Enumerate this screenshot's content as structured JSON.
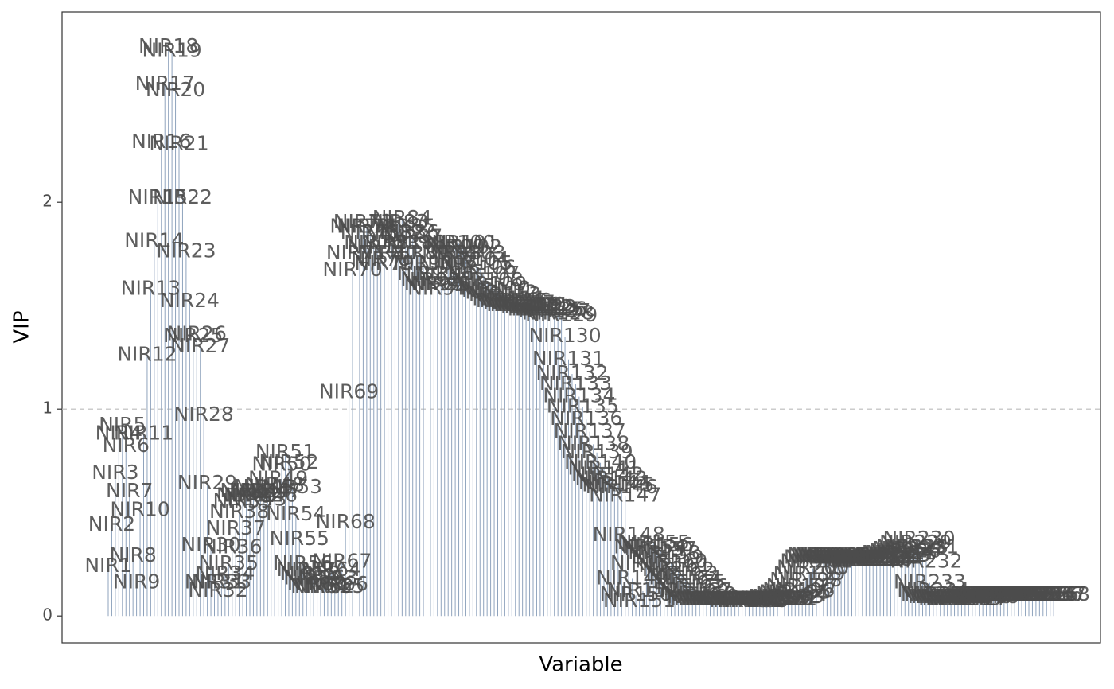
{
  "chart_data": {
    "type": "segment",
    "xlabel": "Variable",
    "ylabel": "VIP",
    "color": "#8fa3bd",
    "label_color": "#4d4d4d",
    "ylim": [
      -0.13,
      2.92
    ],
    "yticks": [
      0,
      1,
      2
    ],
    "hline": 1,
    "categories": [
      "NIR1",
      "NIR2",
      "NIR3",
      "NIR4",
      "NIR5",
      "NIR6",
      "NIR7",
      "NIR8",
      "NIR9",
      "NIR10",
      "NIR11",
      "NIR12",
      "NIR13",
      "NIR14",
      "NIR15",
      "NIR16",
      "NIR17",
      "NIR18",
      "NIR19",
      "NIR20",
      "NIR21",
      "NIR22",
      "NIR23",
      "NIR24",
      "NIR25",
      "NIR26",
      "NIR27",
      "NIR28",
      "NIR29",
      "NIR30",
      "NIR31",
      "NIR32",
      "NIR33",
      "NIR34",
      "NIR35",
      "NIR36",
      "NIR37",
      "NIR38",
      "NIR39",
      "NIR40",
      "NIR41",
      "NIR42",
      "NIR43",
      "NIR44",
      "NIR45",
      "NIR46",
      "NIR47",
      "NIR48",
      "NIR49",
      "NIR50",
      "NIR51",
      "NIR52",
      "NIR53",
      "NIR54",
      "NIR55",
      "NIR56",
      "NIR57",
      "NIR58",
      "NIR59",
      "NIR60",
      "NIR61",
      "NIR62",
      "NIR63",
      "NIR64",
      "NIR65",
      "NIR66",
      "NIR67",
      "NIR68",
      "NIR69",
      "NIR70",
      "NIR71",
      "NIR72",
      "NIR73",
      "NIR74",
      "NIR75",
      "NIR76",
      "NIR77",
      "NIR78",
      "NIR79",
      "NIR80",
      "NIR81",
      "NIR82",
      "NIR83",
      "NIR84",
      "NIR85",
      "NIR86",
      "NIR87",
      "NIR88",
      "NIR89",
      "NIR90",
      "NIR91",
      "NIR92",
      "NIR93",
      "NIR94",
      "NIR95",
      "NIR96",
      "NIR97",
      "NIR98",
      "NIR99",
      "NIR100",
      "NIR101",
      "NIR102",
      "NIR103",
      "NIR104",
      "NIR105",
      "NIR106",
      "NIR107",
      "NIR108",
      "NIR109",
      "NIR110",
      "NIR111",
      "NIR112",
      "NIR113",
      "NIR114",
      "NIR115",
      "NIR116",
      "NIR117",
      "NIR118",
      "NIR119",
      "NIR120",
      "NIR121",
      "NIR122",
      "NIR123",
      "NIR124",
      "NIR125",
      "NIR126",
      "NIR127",
      "NIR128",
      "NIR129",
      "NIR130",
      "NIR131",
      "NIR132",
      "NIR133",
      "NIR134",
      "NIR135",
      "NIR136",
      "NIR137",
      "NIR138",
      "NIR139",
      "NIR140",
      "NIR141",
      "NIR142",
      "NIR143",
      "NIR144",
      "NIR145",
      "NIR146",
      "NIR147",
      "NIR148",
      "NIR149",
      "NIR150",
      "NIR151",
      "NIR152",
      "NIR153",
      "NIR154",
      "NIR155",
      "NIR156",
      "NIR157",
      "NIR158",
      "NIR159",
      "NIR160",
      "NIR161",
      "NIR162",
      "NIR163",
      "NIR164",
      "NIR165",
      "NIR166",
      "NIR167",
      "NIR168",
      "NIR169",
      "NIR170",
      "NIR171",
      "NIR172",
      "NIR173",
      "NIR174",
      "NIR175",
      "NIR176",
      "NIR177",
      "NIR178",
      "NIR179",
      "NIR180",
      "NIR181",
      "NIR182",
      "NIR183",
      "NIR184",
      "NIR185",
      "NIR186",
      "NIR187",
      "NIR188",
      "NIR189",
      "NIR190",
      "NIR191",
      "NIR192",
      "NIR193",
      "NIR194",
      "NIR195",
      "NIR196",
      "NIR197",
      "NIR198",
      "NIR199",
      "NIR200",
      "NIR201",
      "NIR202",
      "NIR203",
      "NIR204",
      "NIR205",
      "NIR206",
      "NIR207",
      "NIR208",
      "NIR209",
      "NIR210",
      "NIR211",
      "NIR212",
      "NIR213",
      "NIR214",
      "NIR215",
      "NIR216",
      "NIR217",
      "NIR218",
      "NIR219",
      "NIR220",
      "NIR221",
      "NIR222",
      "NIR223",
      "NIR224",
      "NIR225",
      "NIR226",
      "NIR227",
      "NIR228",
      "NIR229",
      "NIR230",
      "NIR231",
      "NIR232",
      "NIR233",
      "NIR234",
      "NIR235",
      "NIR236",
      "NIR237",
      "NIR238",
      "NIR239",
      "NIR240",
      "NIR241",
      "NIR242",
      "NIR243",
      "NIR244",
      "NIR245",
      "NIR246",
      "NIR247",
      "NIR248",
      "NIR249",
      "NIR250",
      "NIR251",
      "NIR252",
      "NIR253",
      "NIR254",
      "NIR255",
      "NIR256",
      "NIR257",
      "NIR258",
      "NIR259",
      "NIR260",
      "NIR261",
      "NIR262",
      "NIR263",
      "NIR264",
      "NIR265",
      "NIR266",
      "NIR267",
      "NIR268"
    ],
    "values": [
      0.24,
      0.44,
      0.69,
      0.88,
      0.92,
      0.82,
      0.6,
      0.29,
      0.16,
      0.51,
      0.88,
      1.26,
      1.58,
      1.81,
      2.02,
      2.29,
      2.57,
      2.75,
      2.73,
      2.54,
      2.28,
      2.02,
      1.76,
      1.52,
      1.35,
      1.36,
      1.3,
      0.97,
      0.64,
      0.34,
      0.16,
      0.12,
      0.16,
      0.2,
      0.25,
      0.33,
      0.42,
      0.5,
      0.55,
      0.58,
      0.6,
      0.58,
      0.56,
      0.6,
      0.62,
      0.58,
      0.6,
      0.63,
      0.66,
      0.73,
      0.79,
      0.74,
      0.62,
      0.49,
      0.37,
      0.25,
      0.22,
      0.2,
      0.18,
      0.15,
      0.14,
      0.14,
      0.18,
      0.22,
      0.14,
      0.15,
      0.26,
      0.45,
      1.08,
      1.67,
      1.75,
      1.88,
      1.9,
      1.88,
      1.85,
      1.8,
      1.78,
      1.72,
      1.7,
      1.75,
      1.8,
      1.85,
      1.9,
      1.92,
      1.88,
      1.85,
      1.83,
      1.8,
      1.75,
      1.7,
      1.65,
      1.62,
      1.6,
      1.58,
      1.6,
      1.65,
      1.7,
      1.75,
      1.78,
      1.8,
      1.8,
      1.78,
      1.75,
      1.72,
      1.7,
      1.68,
      1.65,
      1.62,
      1.6,
      1.58,
      1.57,
      1.56,
      1.55,
      1.53,
      1.52,
      1.52,
      1.51,
      1.5,
      1.5,
      1.5,
      1.5,
      1.49,
      1.49,
      1.48,
      1.48,
      1.48,
      1.47,
      1.46,
      1.45,
      1.35,
      1.24,
      1.17,
      1.12,
      1.06,
      1.01,
      0.95,
      0.89,
      0.83,
      0.79,
      0.74,
      0.71,
      0.68,
      0.66,
      0.64,
      0.63,
      0.62,
      0.58,
      0.39,
      0.18,
      0.1,
      0.07,
      0.12,
      0.25,
      0.33,
      0.35,
      0.34,
      0.32,
      0.3,
      0.28,
      0.26,
      0.24,
      0.22,
      0.2,
      0.18,
      0.16,
      0.14,
      0.12,
      0.1,
      0.09,
      0.08,
      0.08,
      0.08,
      0.08,
      0.08,
      0.08,
      0.08,
      0.08,
      0.08,
      0.08,
      0.08,
      0.07,
      0.07,
      0.07,
      0.08,
      0.08,
      0.08,
      0.08,
      0.08,
      0.08,
      0.08,
      0.08,
      0.09,
      0.09,
      0.1,
      0.11,
      0.12,
      0.14,
      0.17,
      0.2,
      0.23,
      0.26,
      0.28,
      0.29,
      0.29,
      0.29,
      0.29,
      0.28,
      0.28,
      0.28,
      0.28,
      0.28,
      0.28,
      0.27,
      0.27,
      0.27,
      0.27,
      0.27,
      0.27,
      0.28,
      0.28,
      0.28,
      0.29,
      0.29,
      0.3,
      0.3,
      0.31,
      0.32,
      0.33,
      0.35,
      0.37,
      0.33,
      0.26,
      0.16,
      0.12,
      0.1,
      0.1,
      0.09,
      0.09,
      0.09,
      0.08,
      0.08,
      0.08,
      0.08,
      0.08,
      0.09,
      0.09,
      0.09,
      0.09,
      0.1,
      0.1,
      0.1,
      0.1,
      0.1,
      0.1,
      0.1,
      0.1,
      0.1,
      0.1,
      0.1,
      0.1,
      0.1,
      0.1,
      0.1,
      0.1,
      0.1,
      0.1,
      0.1,
      0.1
    ]
  }
}
